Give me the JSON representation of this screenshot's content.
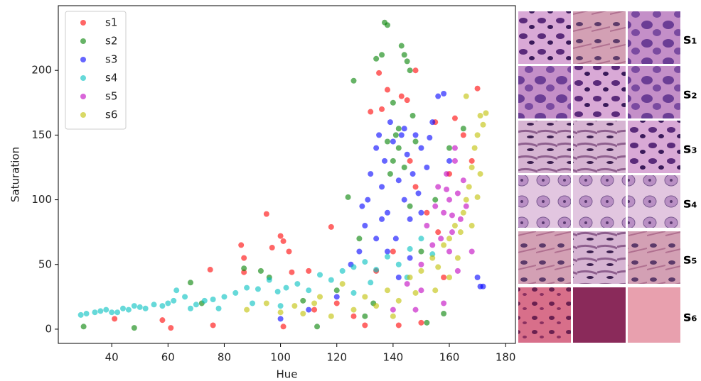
{
  "chart_data": {
    "type": "scatter",
    "x_label": "Hue",
    "y_label": "Saturation",
    "xlim": [
      21,
      183.5
    ],
    "ylim": [
      -11,
      250
    ],
    "xticks": [
      40,
      60,
      80,
      100,
      120,
      140,
      160,
      180
    ],
    "yticks": [
      0,
      50,
      100,
      150,
      200
    ],
    "legend": "upper left",
    "series": [
      {
        "name": "s1",
        "color": "#ff0000",
        "x": [
          41,
          58,
          61,
          75,
          76,
          86,
          87,
          87,
          95,
          97,
          100,
          101,
          101,
          103,
          104,
          110,
          118,
          126,
          130,
          132,
          135,
          136,
          138,
          140,
          142,
          143,
          145,
          146,
          148,
          150,
          152,
          155,
          158,
          160,
          162,
          165,
          168,
          170,
          120,
          112,
          134,
          148,
          156
        ],
        "values": [
          8,
          7,
          1,
          46,
          3,
          65,
          55,
          44,
          89,
          63,
          72,
          68,
          2,
          60,
          44,
          45,
          79,
          10,
          3,
          168,
          198,
          170,
          185,
          60,
          3,
          180,
          177,
          130,
          200,
          5,
          90,
          160,
          40,
          120,
          163,
          150,
          130,
          186,
          20,
          15,
          45,
          110,
          75
        ]
      },
      {
        "name": "s2",
        "color": "#008000",
        "x": [
          30,
          48,
          68,
          72,
          87,
          93,
          96,
          108,
          113,
          124,
          126,
          130,
          134,
          136,
          137,
          138,
          140,
          141,
          142,
          143,
          144,
          145,
          146,
          147,
          148,
          140,
          138,
          142,
          144,
          139,
          150,
          152,
          158,
          155,
          160,
          165,
          120,
          133,
          128,
          146
        ],
        "values": [
          2,
          1,
          36,
          20,
          47,
          45,
          40,
          22,
          2,
          102,
          192,
          10,
          209,
          212,
          237,
          235,
          175,
          150,
          140,
          219,
          212,
          207,
          200,
          165,
          145,
          130,
          145,
          155,
          125,
          120,
          60,
          5,
          12,
          100,
          140,
          155,
          30,
          20,
          70,
          95
        ]
      },
      {
        "name": "s3",
        "color": "#0000ff",
        "x": [
          100,
          110,
          120,
          125,
          128,
          130,
          131,
          132,
          134,
          135,
          136,
          137,
          138,
          139,
          140,
          141,
          142,
          143,
          144,
          145,
          146,
          147,
          148,
          149,
          150,
          152,
          154,
          156,
          158,
          160,
          134,
          138,
          142,
          146,
          150,
          170,
          171,
          172,
          129,
          136,
          144,
          153
        ],
        "values": [
          8,
          15,
          25,
          50,
          60,
          80,
          100,
          120,
          140,
          150,
          110,
          130,
          90,
          160,
          145,
          70,
          115,
          150,
          100,
          135,
          85,
          120,
          150,
          105,
          140,
          125,
          160,
          180,
          182,
          130,
          70,
          60,
          40,
          55,
          90,
          40,
          33,
          33,
          95,
          85,
          155,
          148
        ]
      },
      {
        "name": "s4",
        "color": "#00bfbf",
        "x": [
          29,
          31,
          34,
          36,
          38,
          40,
          42,
          44,
          46,
          48,
          50,
          52,
          55,
          58,
          60,
          62,
          63,
          66,
          68,
          70,
          73,
          76,
          78,
          80,
          84,
          88,
          92,
          96,
          99,
          102,
          106,
          110,
          114,
          118,
          122,
          126,
          130,
          134,
          138,
          142,
          146,
          150,
          154,
          126,
          132,
          145,
          100,
          90
        ],
        "values": [
          11,
          12,
          13,
          14,
          15,
          13,
          13,
          16,
          15,
          18,
          17,
          16,
          19,
          18,
          20,
          22,
          30,
          25,
          16,
          19,
          22,
          23,
          16,
          25,
          28,
          32,
          31,
          38,
          29,
          32,
          35,
          30,
          42,
          38,
          45,
          48,
          52,
          46,
          56,
          50,
          62,
          70,
          58,
          28,
          36,
          40,
          18,
          20
        ]
      },
      {
        "name": "s5",
        "color": "#bf00bf",
        "x": [
          140,
          145,
          150,
          152,
          155,
          156,
          158,
          159,
          160,
          161,
          162,
          163,
          164,
          165,
          160,
          157,
          166,
          168,
          154,
          162,
          150,
          148,
          158,
          163,
          159,
          161
        ],
        "values": [
          15,
          35,
          50,
          80,
          95,
          110,
          90,
          120,
          100,
          75,
          130,
          105,
          85,
          115,
          60,
          70,
          95,
          60,
          65,
          140,
          30,
          15,
          20,
          45,
          108,
          88
        ]
      },
      {
        "name": "s6",
        "color": "#bfbf00",
        "x": [
          88,
          95,
          100,
          105,
          108,
          112,
          114,
          118,
          122,
          126,
          130,
          134,
          138,
          142,
          146,
          150,
          154,
          156,
          158,
          160,
          162,
          164,
          165,
          166,
          167,
          168,
          169,
          170,
          171,
          172,
          173,
          166,
          163,
          170,
          160,
          155,
          148,
          140,
          168,
          171
        ],
        "values": [
          15,
          20,
          13,
          18,
          12,
          20,
          25,
          10,
          35,
          15,
          25,
          18,
          30,
          22,
          40,
          45,
          55,
          48,
          65,
          70,
          80,
          75,
          90,
          100,
          110,
          125,
          140,
          150,
          165,
          158,
          167,
          180,
          55,
          102,
          40,
          30,
          28,
          10,
          80,
          120
        ]
      }
    ]
  },
  "side_panel": {
    "labels": [
      "s₁",
      "s₂",
      "s₃",
      "s₄",
      "s₅",
      "s₆"
    ]
  }
}
